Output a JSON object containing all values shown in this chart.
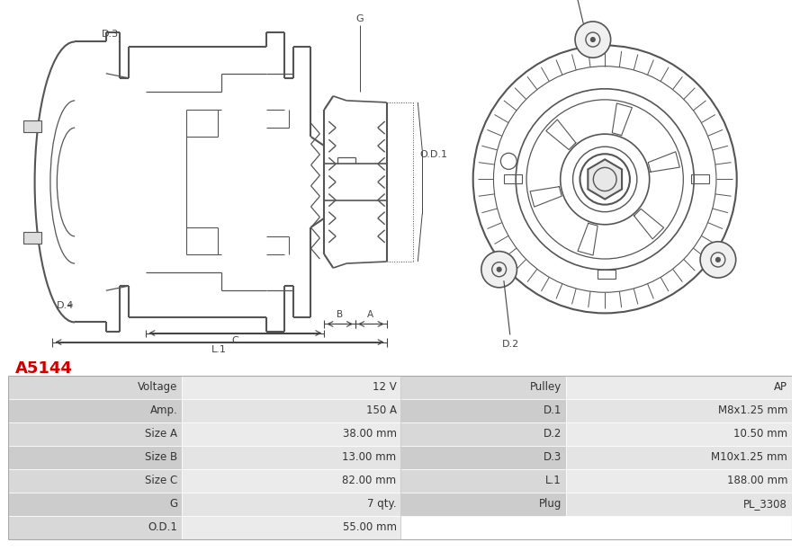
{
  "title": "A5144",
  "title_color": "#cc0000",
  "bg_color": "#ffffff",
  "line_color": "#555555",
  "dim_color": "#444444",
  "table_data": [
    [
      "Voltage",
      "12 V",
      "Pulley",
      "AP"
    ],
    [
      "Amp.",
      "150 A",
      "D.1",
      "M8x1.25 mm"
    ],
    [
      "Size A",
      "38.00 mm",
      "D.2",
      "10.50 mm"
    ],
    [
      "Size B",
      "13.00 mm",
      "D.3",
      "M10x1.25 mm"
    ],
    [
      "Size C",
      "82.00 mm",
      "L.1",
      "188.00 mm"
    ],
    [
      "G",
      "7 qty.",
      "Plug",
      "PL_3308"
    ],
    [
      "O.D.1",
      "55.00 mm",
      "",
      ""
    ]
  ]
}
